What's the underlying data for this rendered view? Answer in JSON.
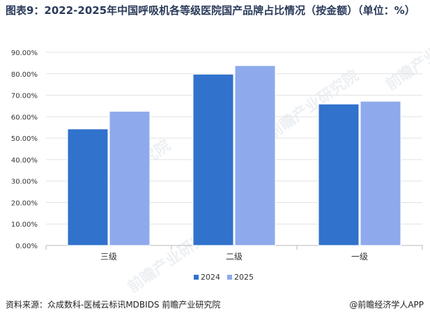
{
  "title": "图表9：2022-2025年中国呼吸机各等级医院国产品牌占比情况（按金额）（单位：%）",
  "source": "资料来源：众成数科-医械云标讯MDBIDS  前瞻产业研究院",
  "brand": "@前瞻经济学人APP",
  "watermark": "前瞻产业研究院",
  "colors": {
    "series_2024": "#3072cc",
    "series_2025": "#8eaaec"
  },
  "chart_data": {
    "type": "bar",
    "title": "图表9：2022-2025年中国呼吸机各等级医院国产品牌占比情况（按金额）（单位：%）",
    "categories": [
      "三级",
      "二级",
      "一级"
    ],
    "series": [
      {
        "name": "2024",
        "values": [
          54.3,
          79.8,
          65.9
        ]
      },
      {
        "name": "2025",
        "values": [
          62.5,
          83.8,
          67.2
        ]
      }
    ],
    "yticks": [
      "0.00%",
      "10.00%",
      "20.00%",
      "30.00%",
      "40.00%",
      "50.00%",
      "60.00%",
      "70.00%",
      "80.00%",
      "90.00%"
    ],
    "ylim": [
      0,
      90
    ],
    "grid": true,
    "legend": "bottom-center"
  }
}
